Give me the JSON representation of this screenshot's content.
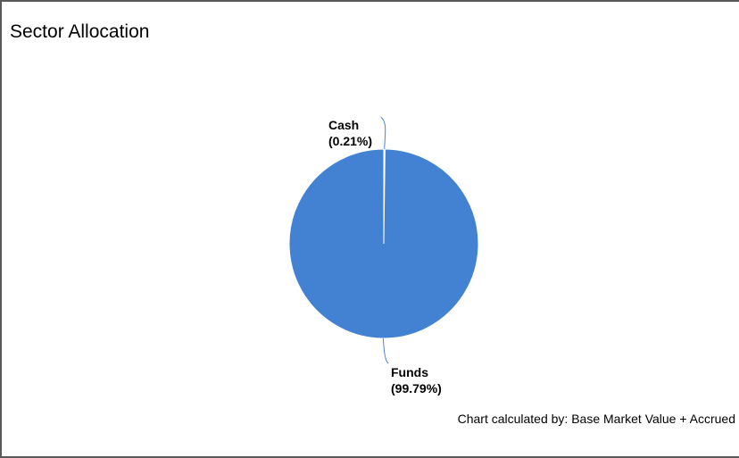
{
  "panel": {
    "title": "Sector Allocation",
    "footer_note": "Chart calculated by: Base Market Value + Accrued"
  },
  "chart_data": {
    "type": "pie",
    "slices": [
      {
        "label": "Cash",
        "value": 0.21,
        "display": "(0.21%)",
        "color": "#ffffff"
      },
      {
        "label": "Funds",
        "value": 99.79,
        "display": "(99.79%)",
        "color": "#4381d2"
      }
    ],
    "leader_line_color": "#4a86d4"
  }
}
